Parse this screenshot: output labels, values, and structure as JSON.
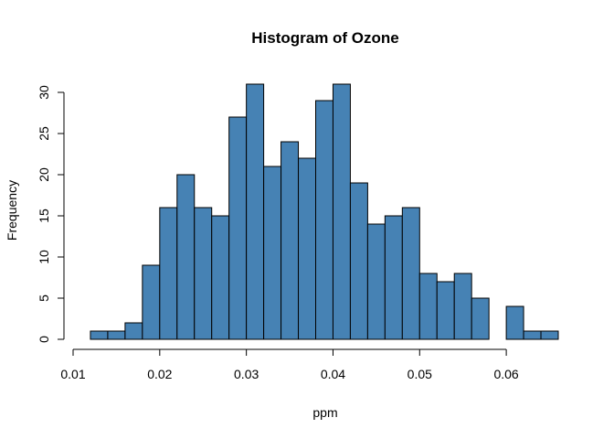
{
  "chart_data": {
    "type": "bar",
    "title": "Histogram of Ozone",
    "xlabel": "ppm",
    "ylabel": "Frequency",
    "bin_width": 0.002,
    "bin_starts": [
      0.012,
      0.014,
      0.016,
      0.018,
      0.02,
      0.022,
      0.024,
      0.026,
      0.028,
      0.03,
      0.032,
      0.034,
      0.036,
      0.038,
      0.04,
      0.042,
      0.044,
      0.046,
      0.048,
      0.05,
      0.052,
      0.054,
      0.056,
      0.058,
      0.06,
      0.062,
      0.064
    ],
    "values": [
      1,
      1,
      2,
      9,
      16,
      20,
      16,
      15,
      27,
      31,
      21,
      24,
      22,
      29,
      31,
      19,
      14,
      15,
      16,
      8,
      7,
      8,
      5,
      0,
      4,
      1,
      1
    ],
    "xlim": [
      0.01,
      0.066
    ],
    "ylim": [
      0,
      30
    ],
    "x_ticks": [
      0.01,
      0.02,
      0.03,
      0.04,
      0.05,
      0.06
    ],
    "x_tick_labels": [
      "0.01",
      "0.02",
      "0.03",
      "0.04",
      "0.05",
      "0.06"
    ],
    "y_ticks": [
      0,
      5,
      10,
      15,
      20,
      25,
      30
    ],
    "y_tick_labels": [
      "0",
      "5",
      "10",
      "15",
      "20",
      "25",
      "30"
    ],
    "grid": false,
    "bar_color": "#4682B4",
    "edge_color": "#000000"
  }
}
